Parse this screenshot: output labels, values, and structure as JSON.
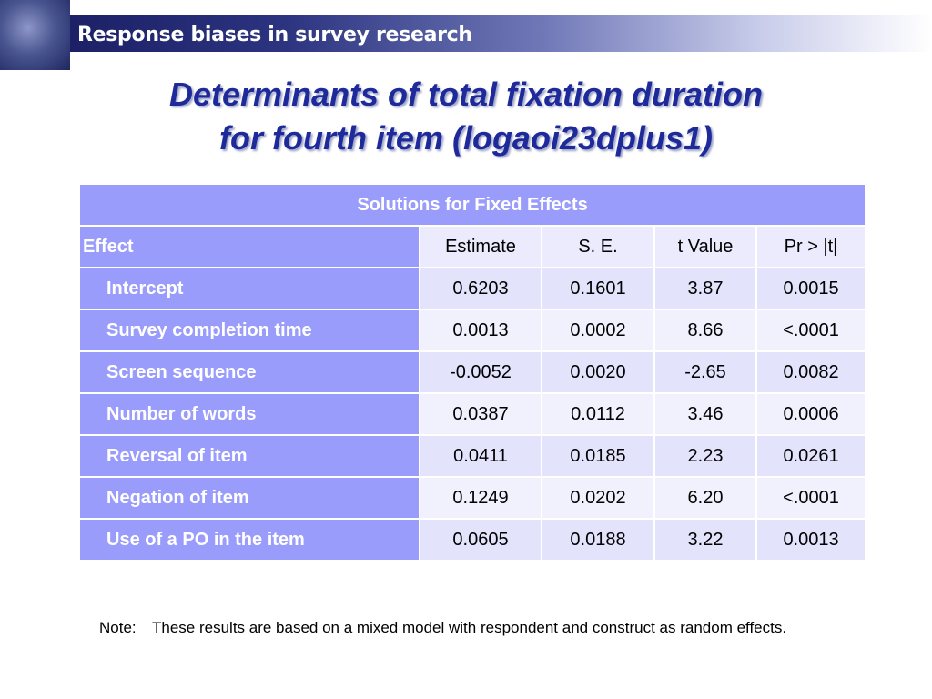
{
  "header": {
    "band_title": "Response biases in survey research",
    "band_color": "#1c2066"
  },
  "slide": {
    "title_line1": "Determinants of total fixation duration",
    "title_line2": "for fourth item (logaoi23dplus1)",
    "title_color": "#1f2a9a"
  },
  "table": {
    "caption": "Solutions for Fixed Effects",
    "columns": [
      "Effect",
      "Estimate",
      "S. E.",
      "t Value",
      "Pr > |t|"
    ],
    "rows": [
      {
        "effect": "Intercept",
        "estimate": "0.6203",
        "se": "0.1601",
        "t": "3.87",
        "p": "0.0015"
      },
      {
        "effect": "Survey completion time",
        "estimate": "0.0013",
        "se": "0.0002",
        "t": "8.66",
        "p": "<.0001"
      },
      {
        "effect": "Screen sequence",
        "estimate": "-0.0052",
        "se": "0.0020",
        "t": "-2.65",
        "p": "0.0082"
      },
      {
        "effect": "Number of words",
        "estimate": "0.0387",
        "se": "0.0112",
        "t": "3.46",
        "p": "0.0006"
      },
      {
        "effect": "Reversal of item",
        "estimate": "0.0411",
        "se": "0.0185",
        "t": "2.23",
        "p": "0.0261"
      },
      {
        "effect": "Negation of item",
        "estimate": "0.1249",
        "se": "0.0202",
        "t": "6.20",
        "p": "<.0001"
      },
      {
        "effect": "Use of a PO in the item",
        "estimate": "0.0605",
        "se": "0.0188",
        "t": "3.22",
        "p": "0.0013"
      }
    ],
    "accent_color": "#9a9cfb"
  },
  "note": {
    "label": "Note:",
    "text": "These results are based on a mixed model with respondent and construct as random effects."
  }
}
